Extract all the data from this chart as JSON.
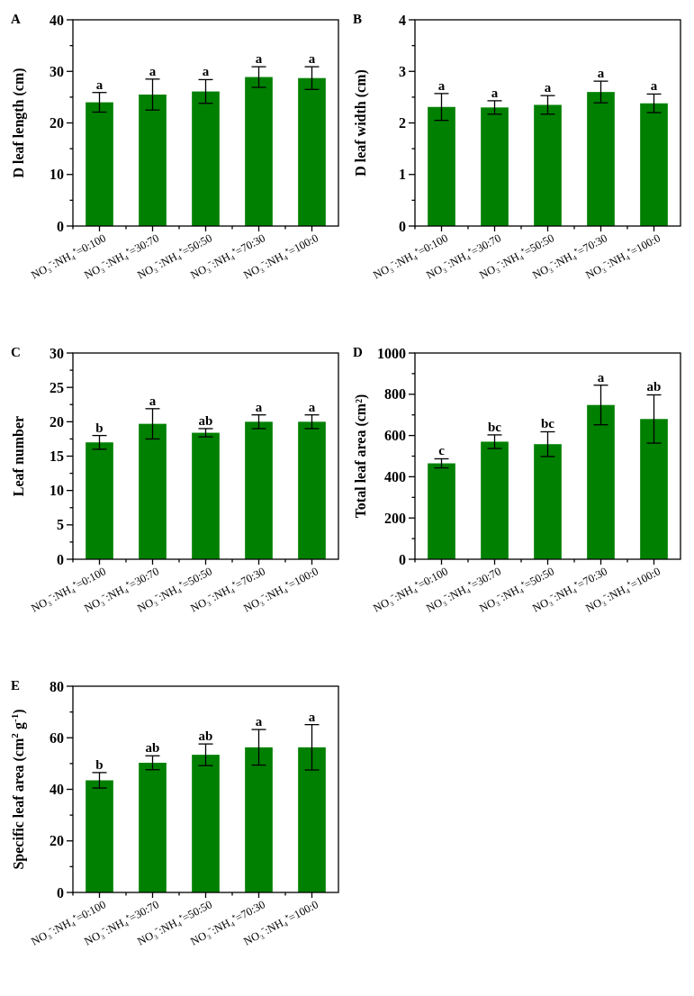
{
  "chart_data": [
    {
      "type": "bar",
      "title": "A",
      "ylabel": "D leaf length (cm)",
      "categories": [
        "NO₃⁻:NH₄⁺=0:100",
        "NO₃⁻:NH₄⁺=30:70",
        "NO₃⁻:NH₄⁺=50:50",
        "NO₃⁻:NH₄⁺=70:30",
        "NO₃⁻:NH₄⁺=100:0"
      ],
      "color": "#008000",
      "values": [
        24.0,
        25.5,
        26.1,
        28.9,
        28.7
      ],
      "errors": [
        1.9,
        3.0,
        2.3,
        2.0,
        2.2
      ],
      "ylim": [
        0,
        40
      ],
      "yticks": [
        0,
        {
          "value": 5,
          "label": null
        },
        10,
        {
          "value": 15,
          "label": null
        },
        20,
        {
          "value": 25,
          "label": null
        },
        30,
        {
          "value": 35,
          "label": null
        },
        40
      ],
      "grid": false,
      "annotations": [
        {
          "text": "a",
          "x": "NO₃⁻:NH₄⁺=0:100",
          "y": 25.9
        },
        {
          "text": "a",
          "x": "NO₃⁻:NH₄⁺=30:70",
          "y": 28.5
        },
        {
          "text": "a",
          "x": "NO₃⁻:NH₄⁺=50:50",
          "y": 28.4
        },
        {
          "text": "a",
          "x": "NO₃⁻:NH₄⁺=70:30",
          "y": 30.9
        },
        {
          "text": "a",
          "x": "NO₃⁻:NH₄⁺=100:0",
          "y": 30.9
        }
      ]
    },
    {
      "type": "bar",
      "title": "B",
      "ylabel": "D leaf width (cm)",
      "categories": [
        "NO₃⁻:NH₄⁺=0:100",
        "NO₃⁻:NH₄⁺=30:70",
        "NO₃⁻:NH₄⁺=50:50",
        "NO₃⁻:NH₄⁺=70:30",
        "NO₃⁻:NH₄⁺=100:0"
      ],
      "color": "#008000",
      "values": [
        2.31,
        2.3,
        2.35,
        2.6,
        2.38
      ],
      "errors": [
        0.26,
        0.13,
        0.18,
        0.21,
        0.18
      ],
      "ylim": [
        0,
        4
      ],
      "yticks": [
        0,
        {
          "value": 0.5,
          "label": null
        },
        1,
        {
          "value": 1.5,
          "label": null
        },
        2,
        {
          "value": 2.5,
          "label": null
        },
        3,
        {
          "value": 3.5,
          "label": null
        },
        4
      ],
      "grid": false,
      "annotations": [
        {
          "text": "a",
          "x": "NO₃⁻:NH₄⁺=0:100",
          "y": 2.57
        },
        {
          "text": "a",
          "x": "NO₃⁻:NH₄⁺=30:70",
          "y": 2.43
        },
        {
          "text": "a",
          "x": "NO₃⁻:NH₄⁺=50:50",
          "y": 2.53
        },
        {
          "text": "a",
          "x": "NO₃⁻:NH₄⁺=70:30",
          "y": 2.81
        },
        {
          "text": "a",
          "x": "NO₃⁻:NH₄⁺=100:0",
          "y": 2.56
        }
      ]
    },
    {
      "type": "bar",
      "title": "C",
      "ylabel": "Leaf number",
      "categories": [
        "NO₃⁻:NH₄⁺=0:100",
        "NO₃⁻:NH₄⁺=30:70",
        "NO₃⁻:NH₄⁺=50:50",
        "NO₃⁻:NH₄⁺=70:30",
        "NO₃⁻:NH₄⁺=100:0"
      ],
      "color": "#008000",
      "values": [
        17.0,
        19.7,
        18.4,
        20.0,
        20.0
      ],
      "errors": [
        1.0,
        2.2,
        0.6,
        1.0,
        1.0
      ],
      "ylim": [
        0,
        30
      ],
      "yticks": [
        0,
        {
          "value": 2.5,
          "label": null
        },
        5,
        {
          "value": 7.5,
          "label": null
        },
        10,
        {
          "value": 12.5,
          "label": null
        },
        15,
        {
          "value": 17.5,
          "label": null
        },
        20,
        {
          "value": 22.5,
          "label": null
        },
        25,
        {
          "value": 27.5,
          "label": null
        },
        30
      ],
      "grid": false,
      "annotations": [
        {
          "text": "b",
          "x": "NO₃⁻:NH₄⁺=0:100",
          "y": 18.0
        },
        {
          "text": "a",
          "x": "NO₃⁻:NH₄⁺=30:70",
          "y": 21.9
        },
        {
          "text": "ab",
          "x": "NO₃⁻:NH₄⁺=50:50",
          "y": 19.0
        },
        {
          "text": "a",
          "x": "NO₃⁻:NH₄⁺=70:30",
          "y": 21.0
        },
        {
          "text": "a",
          "x": "NO₃⁻:NH₄⁺=100:0",
          "y": 21.0
        }
      ]
    },
    {
      "type": "bar",
      "title": "D",
      "ylabel": "Total leaf area (cm²)",
      "categories": [
        "NO₃⁻:NH₄⁺=0:100",
        "NO₃⁻:NH₄⁺=30:70",
        "NO₃⁻:NH₄⁺=50:50",
        "NO₃⁻:NH₄⁺=70:30",
        "NO₃⁻:NH₄⁺=100:0"
      ],
      "color": "#008000",
      "values": [
        465,
        570,
        558,
        748,
        680
      ],
      "errors": [
        22,
        33,
        60,
        96,
        117
      ],
      "ylim": [
        0,
        1000
      ],
      "yticks": [
        0,
        {
          "value": 100,
          "label": null
        },
        200,
        {
          "value": 300,
          "label": null
        },
        400,
        {
          "value": 500,
          "label": null
        },
        600,
        {
          "value": 700,
          "label": null
        },
        800,
        {
          "value": 900,
          "label": null
        },
        1000
      ],
      "grid": false,
      "annotations": [
        {
          "text": "c",
          "x": "NO₃⁻:NH₄⁺=0:100",
          "y": 487
        },
        {
          "text": "bc",
          "x": "NO₃⁻:NH₄⁺=30:70",
          "y": 603
        },
        {
          "text": "bc",
          "x": "NO₃⁻:NH₄⁺=50:50",
          "y": 618
        },
        {
          "text": "a",
          "x": "NO₃⁻:NH₄⁺=70:30",
          "y": 844
        },
        {
          "text": "ab",
          "x": "NO₃⁻:NH₄⁺=100:0",
          "y": 797
        }
      ]
    },
    {
      "type": "bar",
      "title": "E",
      "ylabel": "Specific leaf area (cm$^{2}$ g$^{-1}$)",
      "categories": [
        "NO₃⁻:NH₄⁺=0:100",
        "NO₃⁻:NH₄⁺=30:70",
        "NO₃⁻:NH₄⁺=50:50",
        "NO₃⁻:NH₄⁺=70:30",
        "NO₃⁻:NH₄⁺=100:0"
      ],
      "color": "#008000",
      "values": [
        43.5,
        50.3,
        53.4,
        56.3,
        56.3
      ],
      "errors": [
        3.0,
        2.7,
        4.2,
        6.9,
        8.8
      ],
      "ylim": [
        0,
        80
      ],
      "yticks": [
        0,
        {
          "value": 10,
          "label": null
        },
        20,
        {
          "value": 30,
          "label": null
        },
        40,
        {
          "value": 50,
          "label": null
        },
        60,
        {
          "value": 70,
          "label": null
        },
        80
      ],
      "grid": false,
      "annotations": [
        {
          "text": "b",
          "x": "NO₃⁻:NH₄⁺=0:100",
          "y": 46.5
        },
        {
          "text": "ab",
          "x": "NO₃⁻:NH₄⁺=30:70",
          "y": 53.0
        },
        {
          "text": "ab",
          "x": "NO₃⁻:NH₄⁺=50:50",
          "y": 57.6
        },
        {
          "text": "a",
          "x": "NO₃⁻:NH₄⁺=70:30",
          "y": 63.2
        },
        {
          "text": "a",
          "x": "NO₃⁻:NH₄⁺=100:0",
          "y": 65.1
        }
      ]
    }
  ]
}
